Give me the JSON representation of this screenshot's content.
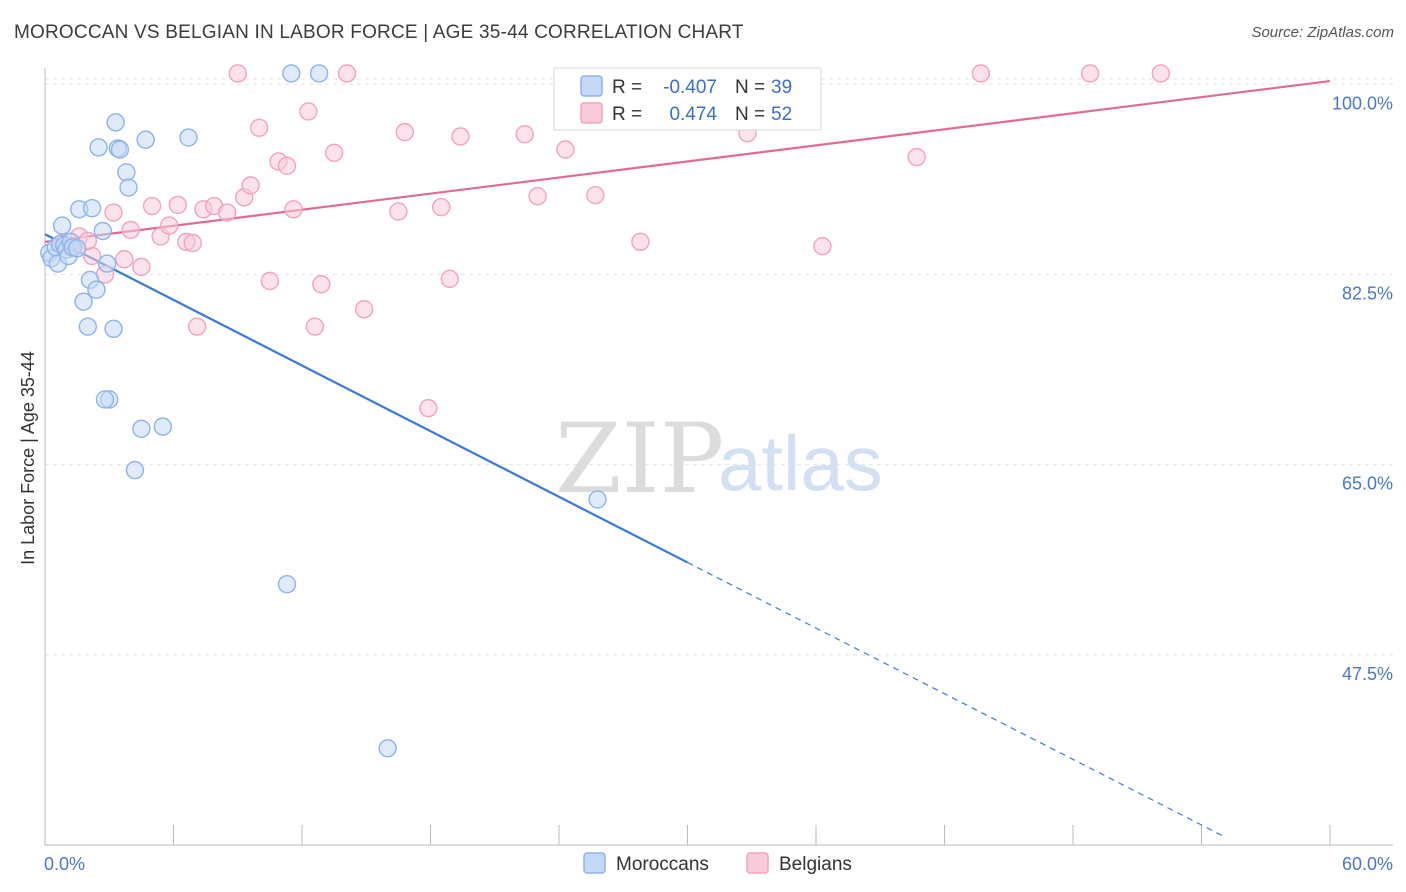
{
  "header": {
    "title": "MOROCCAN VS BELGIAN IN LABOR FORCE | AGE 35-44 CORRELATION CHART",
    "source": "Source: ZipAtlas.com"
  },
  "watermark": {
    "zip": "ZIP",
    "atlas": "atlas"
  },
  "legend": {
    "rows": [
      {
        "r_label": "R =",
        "r_value": "-0.407",
        "n_label": "N =",
        "n_value": "39",
        "color": "#8db4ec",
        "fill": "#c5d9f6"
      },
      {
        "r_label": "R =",
        "r_value": "0.474",
        "n_label": "N =",
        "n_value": "52",
        "color": "#f2a3bd",
        "fill": "#f9cbda"
      }
    ]
  },
  "bottom_legend": [
    {
      "label": "Moroccans",
      "color": "#8db4ec",
      "fill": "#c5d9f6"
    },
    {
      "label": "Belgians",
      "color": "#f2a3bd",
      "fill": "#f9cbda"
    }
  ],
  "chart_data": {
    "type": "scatter",
    "title": "MOROCCAN VS BELGIAN IN LABOR FORCE | AGE 35-44 CORRELATION CHART",
    "xlabel": "",
    "ylabel": "In Labor Force | Age 35-44",
    "xlim": [
      0,
      60
    ],
    "ylim": [
      30,
      101.5
    ],
    "x_tick_labels": [
      "0.0%",
      "60.0%"
    ],
    "y_ticks": [
      {
        "value": 47.5,
        "label": "47.5%"
      },
      {
        "value": 65.0,
        "label": "65.0%"
      },
      {
        "value": 82.5,
        "label": "82.5%"
      },
      {
        "value": 100.0,
        "label": "100.0%"
      }
    ],
    "grid": true,
    "series": [
      {
        "name": "Moroccans",
        "color": "#3a7bd5",
        "point_fill": "#c5d9f6",
        "point_stroke": "#8db4ec",
        "trend": {
          "x0": 0.0,
          "y0": 86.2,
          "x1": 30.0,
          "y1": 56.0,
          "dash_to_x": 55.0
        },
        "points": [
          [
            0.2,
            84.5
          ],
          [
            0.3,
            84.0
          ],
          [
            0.5,
            85.0
          ],
          [
            0.6,
            83.5
          ],
          [
            0.7,
            85.3
          ],
          [
            0.8,
            87.0
          ],
          [
            0.9,
            85.2
          ],
          [
            1.0,
            84.8
          ],
          [
            1.1,
            84.2
          ],
          [
            1.2,
            85.5
          ],
          [
            1.3,
            85.0
          ],
          [
            1.5,
            84.9
          ],
          [
            1.6,
            88.5
          ],
          [
            1.8,
            80.0
          ],
          [
            2.0,
            77.7
          ],
          [
            2.1,
            82.0
          ],
          [
            2.2,
            88.6
          ],
          [
            2.4,
            81.1
          ],
          [
            2.5,
            94.2
          ],
          [
            2.7,
            86.5
          ],
          [
            2.9,
            83.5
          ],
          [
            3.0,
            71.0
          ],
          [
            3.2,
            77.5
          ],
          [
            3.3,
            96.5
          ],
          [
            3.4,
            94.1
          ],
          [
            3.5,
            94.0
          ],
          [
            3.8,
            91.9
          ],
          [
            3.9,
            90.5
          ],
          [
            4.2,
            64.5
          ],
          [
            4.5,
            68.3
          ],
          [
            4.7,
            94.9
          ],
          [
            5.5,
            68.5
          ],
          [
            6.7,
            95.1
          ],
          [
            11.3,
            54.0
          ],
          [
            11.5,
            101.0
          ],
          [
            12.8,
            101.0
          ],
          [
            16.0,
            38.9
          ],
          [
            2.8,
            71.0
          ],
          [
            25.8,
            61.8
          ]
        ]
      },
      {
        "name": "Belgians",
        "color": "#e06a95",
        "point_fill": "#f9cbda",
        "point_stroke": "#f2a3bd",
        "trend": {
          "x0": 0.0,
          "y0": 85.5,
          "x1": 60.0,
          "y1": 100.3
        },
        "points": [
          [
            0.8,
            85.4
          ],
          [
            1.2,
            85.0
          ],
          [
            1.6,
            86.0
          ],
          [
            2.2,
            84.2
          ],
          [
            2.8,
            82.5
          ],
          [
            3.2,
            88.2
          ],
          [
            3.7,
            83.9
          ],
          [
            4.0,
            86.6
          ],
          [
            4.5,
            83.2
          ],
          [
            5.0,
            88.8
          ],
          [
            5.4,
            86.0
          ],
          [
            5.8,
            87.0
          ],
          [
            6.2,
            88.9
          ],
          [
            6.6,
            85.5
          ],
          [
            7.1,
            77.7
          ],
          [
            7.4,
            88.5
          ],
          [
            7.9,
            88.8
          ],
          [
            8.5,
            88.2
          ],
          [
            9.0,
            101.0
          ],
          [
            9.3,
            89.6
          ],
          [
            9.6,
            90.7
          ],
          [
            10.0,
            96.0
          ],
          [
            10.5,
            81.9
          ],
          [
            10.9,
            92.9
          ],
          [
            11.3,
            92.5
          ],
          [
            11.6,
            88.5
          ],
          [
            12.3,
            97.5
          ],
          [
            12.6,
            77.7
          ],
          [
            12.9,
            81.6
          ],
          [
            13.5,
            93.7
          ],
          [
            14.1,
            101.0
          ],
          [
            14.9,
            79.3
          ],
          [
            16.5,
            88.3
          ],
          [
            16.8,
            95.6
          ],
          [
            17.9,
            70.2
          ],
          [
            18.5,
            88.7
          ],
          [
            18.9,
            82.1
          ],
          [
            19.4,
            95.2
          ],
          [
            22.4,
            95.4
          ],
          [
            23.0,
            89.7
          ],
          [
            24.3,
            94.0
          ],
          [
            25.7,
            89.8
          ],
          [
            27.8,
            85.5
          ],
          [
            32.8,
            95.5
          ],
          [
            36.3,
            85.1
          ],
          [
            40.7,
            93.3
          ],
          [
            43.7,
            101.0
          ],
          [
            48.8,
            101.0
          ],
          [
            52.1,
            101.0
          ],
          [
            2.0,
            85.6
          ],
          [
            1.5,
            84.9
          ],
          [
            6.9,
            85.4
          ]
        ]
      }
    ]
  }
}
